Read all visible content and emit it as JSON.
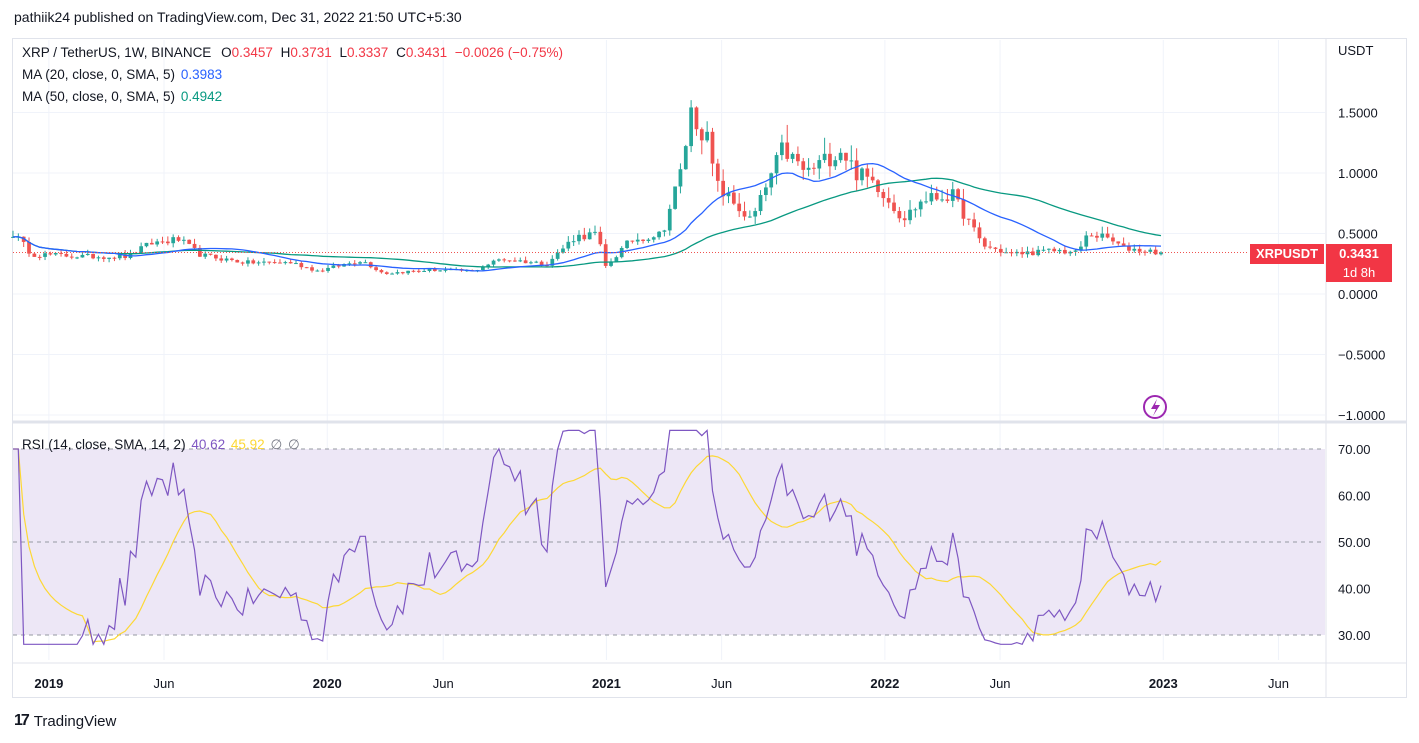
{
  "header": {
    "publisher": "pathiik24 published on TradingView.com, Dec 31, 2022 21:50 UTC+5:30"
  },
  "legend": {
    "symbol": "XRP / TetherUS, 1W, BINANCE",
    "o_label": "O",
    "o": "0.3457",
    "h_label": "H",
    "h": "0.3731",
    "l_label": "L",
    "l": "0.3337",
    "c_label": "C",
    "c": "0.3431",
    "change": "−0.0026 (−0.75%)",
    "ma20_label": "MA (20, close, 0, SMA, 5)",
    "ma20": "0.3983",
    "ma50_label": "MA (50, close, 0, SMA, 5)",
    "ma50": "0.4942",
    "rsi_label": "RSI (14, close, SMA, 14, 2)",
    "rsi": "40.62",
    "rsi_ma": "45.92",
    "rsi_extra1": "∅",
    "rsi_extra2": "∅"
  },
  "price_tag": {
    "symbol": "XRPUSDT",
    "price": "0.3431",
    "countdown": "1d 8h"
  },
  "footer": {
    "brand": "TradingView",
    "logo": "17"
  },
  "colors": {
    "up": "#26a69a",
    "down": "#ef5350",
    "ma20": "#2962ff",
    "ma50": "#089981",
    "rsi": "#7e57c2",
    "rsi_ma": "#fdd835",
    "rsi_band": "#ede7f6",
    "tag": "#f23645"
  },
  "chart_data": [
    {
      "type": "candlestick",
      "ylabel": "USDT",
      "ylim": [
        -1.0,
        2.0
      ],
      "y_ticks": [
        "1.5000",
        "1.0000",
        "0.5000",
        "0.0000",
        "−0.5000",
        "−1.0000"
      ],
      "y_tick_values": [
        1.5,
        1.0,
        0.5,
        0.0,
        -0.5,
        -1.0
      ],
      "x_ticks": [
        "2019",
        "Jun",
        "2020",
        "Jun",
        "2021",
        "Jun",
        "2022",
        "Jun",
        "2023",
        "Jun"
      ],
      "x_tick_dates": [
        "2019-01-01",
        "2019-06-01",
        "2020-01-01",
        "2020-06-01",
        "2021-01-01",
        "2021-06-01",
        "2022-01-01",
        "2022-06-01",
        "2023-01-01",
        "2023-06-01"
      ],
      "x_range": [
        "2018-11-15",
        "2023-08-01"
      ],
      "close_key": [
        [
          "2018-11-15",
          0.5
        ],
        [
          "2018-12-10",
          0.33
        ],
        [
          "2019-02-15",
          0.31
        ],
        [
          "2019-04-15",
          0.31
        ],
        [
          "2019-05-15",
          0.42
        ],
        [
          "2019-06-20",
          0.45
        ],
        [
          "2019-07-20",
          0.32
        ],
        [
          "2019-09-15",
          0.26
        ],
        [
          "2019-11-15",
          0.26
        ],
        [
          "2019-12-20",
          0.19
        ],
        [
          "2020-02-15",
          0.28
        ],
        [
          "2020-03-15",
          0.17
        ],
        [
          "2020-05-15",
          0.2
        ],
        [
          "2020-07-10",
          0.19
        ],
        [
          "2020-08-15",
          0.29
        ],
        [
          "2020-10-15",
          0.25
        ],
        [
          "2020-11-20",
          0.47
        ],
        [
          "2020-12-20",
          0.5
        ],
        [
          "2020-12-30",
          0.22
        ],
        [
          "2021-02-01",
          0.44
        ],
        [
          "2021-03-15",
          0.5
        ],
        [
          "2021-04-08",
          1.0
        ],
        [
          "2021-04-22",
          1.5
        ],
        [
          "2021-05-12",
          1.3
        ],
        [
          "2021-05-25",
          0.9
        ],
        [
          "2021-07-10",
          0.6
        ],
        [
          "2021-08-20",
          1.2
        ],
        [
          "2021-09-20",
          1.0
        ],
        [
          "2021-11-05",
          1.2
        ],
        [
          "2021-11-25",
          1.0
        ],
        [
          "2021-12-20",
          0.92
        ],
        [
          "2022-01-25",
          0.62
        ],
        [
          "2022-02-20",
          0.78
        ],
        [
          "2022-03-30",
          0.82
        ],
        [
          "2022-05-10",
          0.4
        ],
        [
          "2022-06-15",
          0.33
        ],
        [
          "2022-08-15",
          0.36
        ],
        [
          "2022-09-10",
          0.34
        ],
        [
          "2022-09-25",
          0.5
        ],
        [
          "2022-10-20",
          0.46
        ],
        [
          "2022-11-10",
          0.38
        ],
        [
          "2022-12-31",
          0.3431
        ]
      ],
      "series": [
        {
          "name": "MA (20, close, 0, SMA, 5)",
          "last": 0.3983
        },
        {
          "name": "MA (50, close, 0, SMA, 5)",
          "last": 0.4942
        }
      ]
    },
    {
      "type": "line",
      "ylim": [
        26,
        74
      ],
      "y_ticks": [
        "70.00",
        "60.00",
        "50.00",
        "40.00",
        "30.00"
      ],
      "y_tick_values": [
        70,
        60,
        50,
        40,
        30
      ],
      "band": [
        30,
        70
      ],
      "series": [
        {
          "name": "RSI (14, close, SMA, 14, 2)",
          "last": 40.62
        },
        {
          "name": "RSI MA",
          "last": 45.92
        }
      ]
    }
  ]
}
